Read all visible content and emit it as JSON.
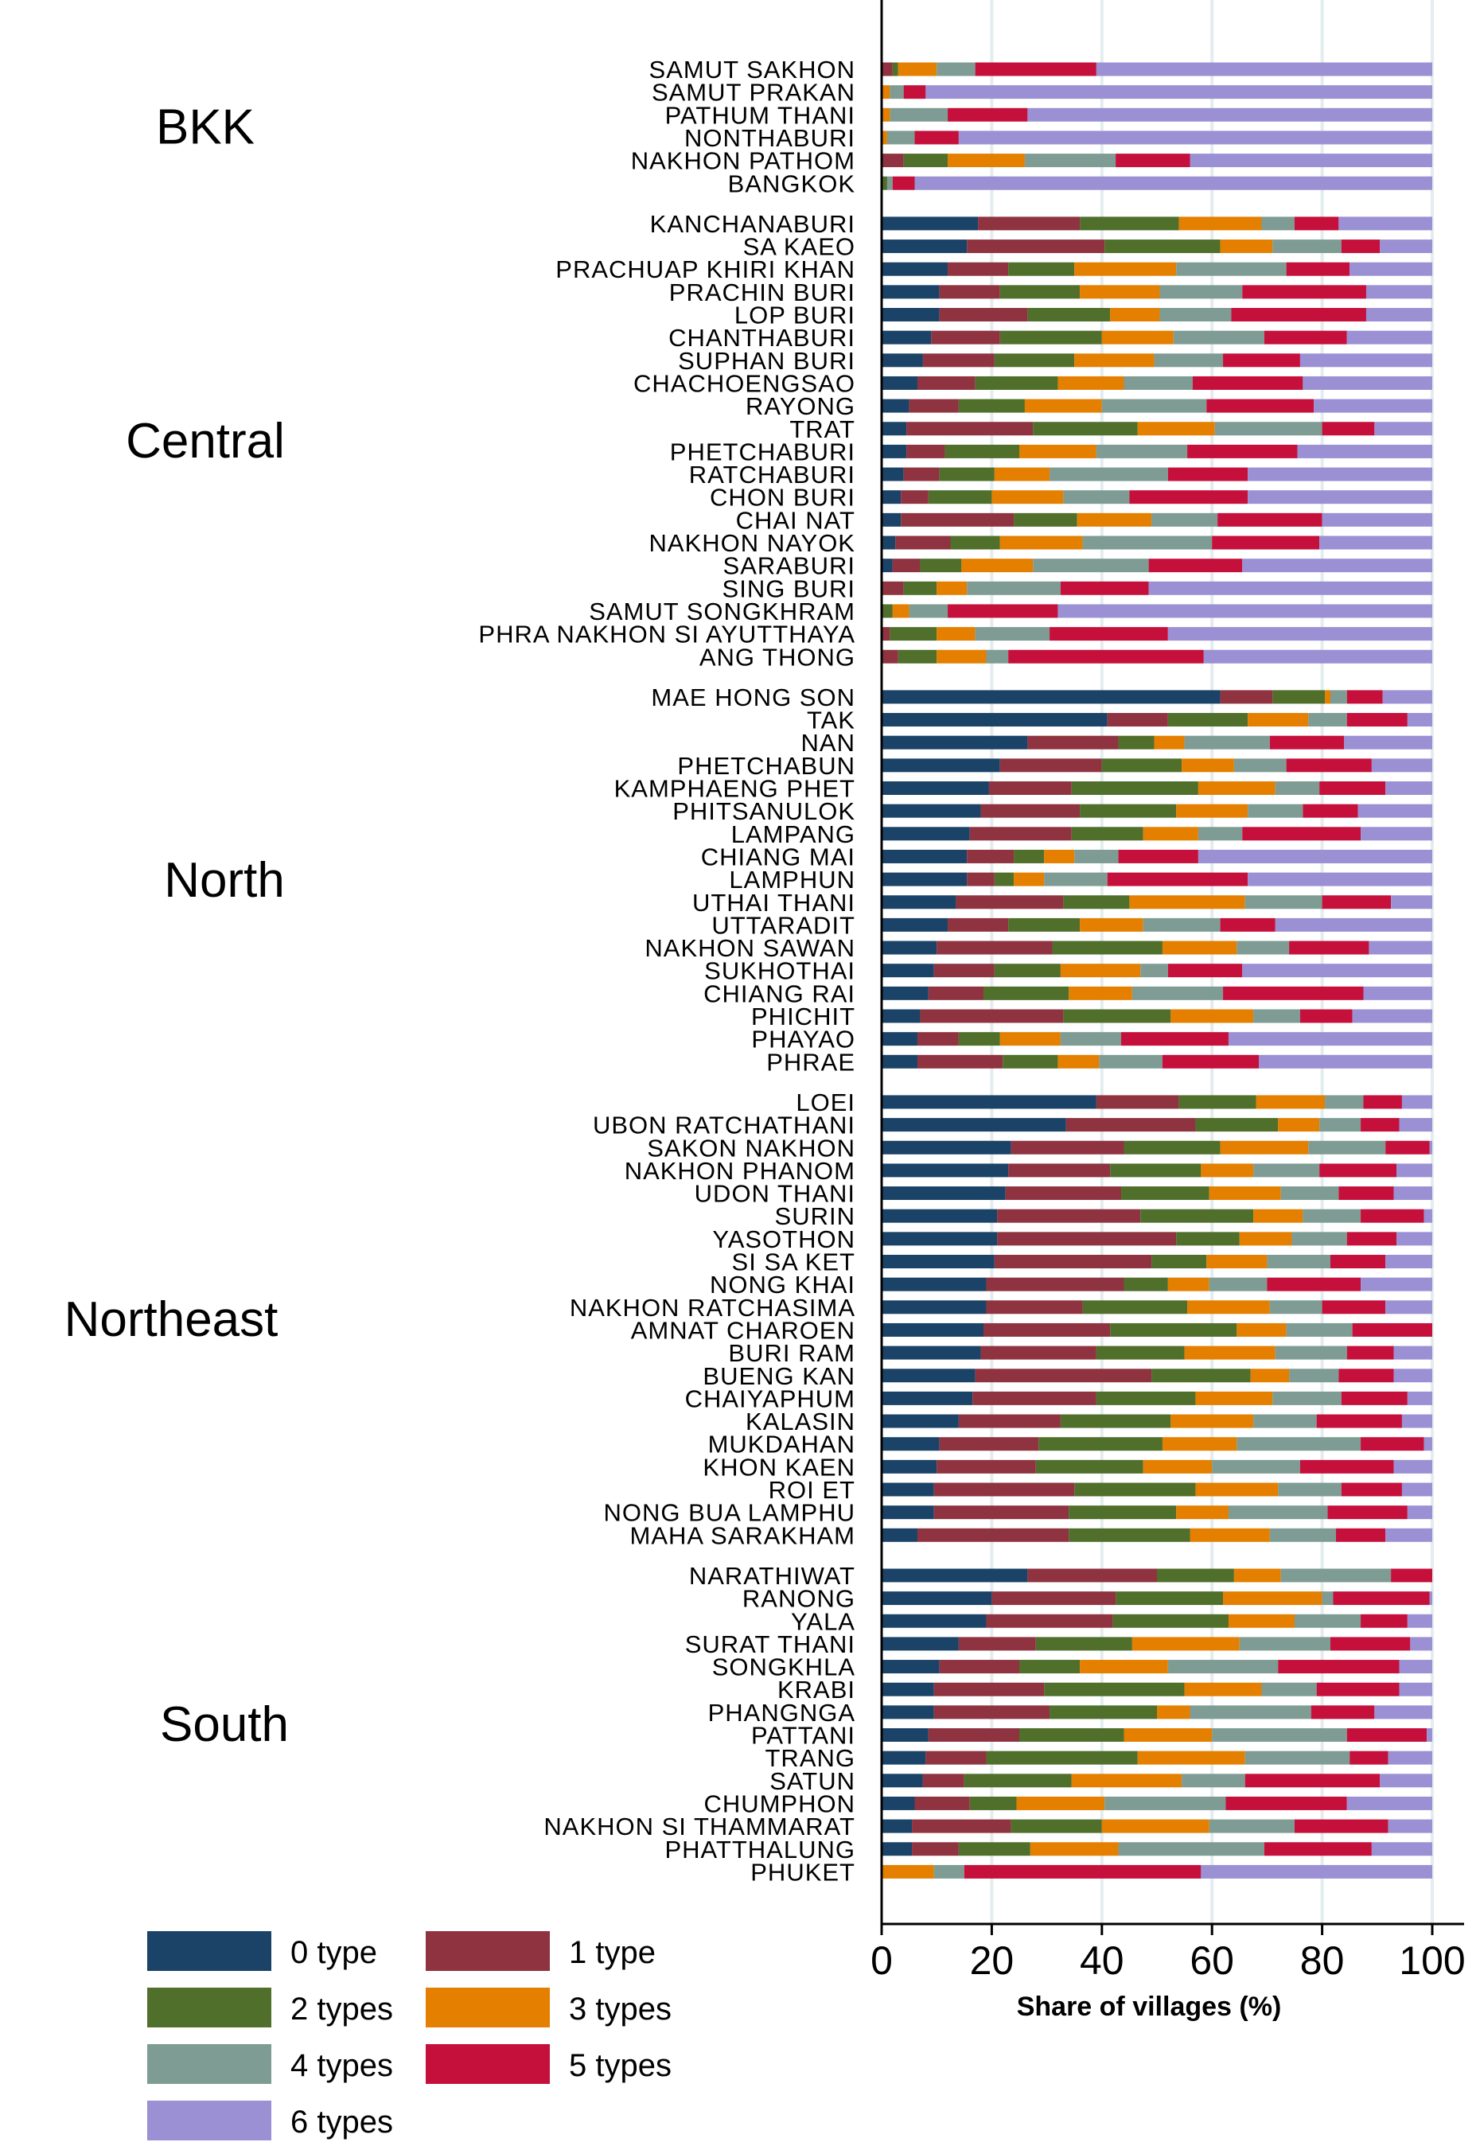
{
  "chart_data": {
    "type": "bar",
    "orientation": "horizontal",
    "stacked": true,
    "xlabel": "Share of villages (%)",
    "xlim": [
      0,
      100
    ],
    "xticks": [
      0,
      20,
      40,
      60,
      80,
      100
    ],
    "grid": "vertical",
    "legend_position": "bottom-left",
    "series": [
      {
        "name": "0 type",
        "color": "#1b4368"
      },
      {
        "name": "1 type",
        "color": "#8f3340"
      },
      {
        "name": "2 types",
        "color": "#4f6f2b"
      },
      {
        "name": "3 types",
        "color": "#e47f00"
      },
      {
        "name": "4 types",
        "color": "#7e9c94"
      },
      {
        "name": "5 types",
        "color": "#c6103c"
      },
      {
        "name": "6 types",
        "color": "#9b90d4"
      }
    ],
    "groups": [
      {
        "name": "BKK",
        "rows": [
          {
            "province": "SAMUT SAKHON",
            "values": [
              0,
              2,
              1,
              7,
              7,
              22,
              61
            ]
          },
          {
            "province": "SAMUT PRAKAN",
            "values": [
              0,
              0,
              0,
              1.5,
              2.5,
              4,
              92
            ]
          },
          {
            "province": "PATHUM THANI",
            "values": [
              0,
              0,
              0,
              1.5,
              10.5,
              14.5,
              73.5
            ]
          },
          {
            "province": "NONTHABURI",
            "values": [
              0,
              0,
              0,
              1,
              5,
              8,
              86
            ]
          },
          {
            "province": "NAKHON PATHOM",
            "values": [
              0,
              4,
              8,
              14,
              16.5,
              13.5,
              44
            ]
          },
          {
            "province": "BANGKOK",
            "values": [
              0,
              0,
              1,
              0,
              1,
              4,
              94
            ]
          }
        ]
      },
      {
        "name": "Central",
        "rows": [
          {
            "province": "KANCHANABURI",
            "values": [
              17.5,
              18.5,
              18,
              15,
              6,
              8,
              17
            ]
          },
          {
            "province": "SA KAEO",
            "values": [
              15.5,
              25,
              21,
              9.5,
              12.5,
              7,
              9.5
            ]
          },
          {
            "province": "PRACHUAP KHIRI KHAN",
            "values": [
              12,
              11,
              12,
              18.5,
              20,
              11.5,
              15
            ]
          },
          {
            "province": "PRACHIN BURI",
            "values": [
              10.5,
              11,
              14.5,
              14.5,
              15,
              22.5,
              12
            ]
          },
          {
            "province": "LOP BURI",
            "values": [
              10.5,
              16,
              15,
              9,
              13,
              24.5,
              12
            ]
          },
          {
            "province": "CHANTHABURI",
            "values": [
              9,
              12.5,
              18.5,
              13,
              16.5,
              15,
              15.5
            ]
          },
          {
            "province": "SUPHAN BURI",
            "values": [
              7.5,
              13,
              14.5,
              14.5,
              12.5,
              14,
              24
            ]
          },
          {
            "province": "CHACHOENGSAO",
            "values": [
              6.5,
              10.5,
              15,
              12,
              12.5,
              20,
              23.5
            ]
          },
          {
            "province": "RAYONG",
            "values": [
              5,
              9,
              12,
              14,
              19,
              19.5,
              21.5
            ]
          },
          {
            "province": "TRAT",
            "values": [
              4.5,
              23,
              19,
              14,
              19.5,
              9.5,
              10.5
            ]
          },
          {
            "province": "PHETCHABURI",
            "values": [
              4.5,
              7,
              13.5,
              14,
              16.5,
              20,
              24.5
            ]
          },
          {
            "province": "RATCHABURI",
            "values": [
              4,
              6.5,
              10,
              10,
              21.5,
              14.5,
              33.5
            ]
          },
          {
            "province": "CHON BURI",
            "values": [
              3.5,
              5,
              11.5,
              13,
              12,
              21.5,
              33.5
            ]
          },
          {
            "province": "CHAI NAT",
            "values": [
              3.5,
              20.5,
              11.5,
              13.5,
              12,
              19,
              20
            ]
          },
          {
            "province": "NAKHON NAYOK",
            "values": [
              2.5,
              10,
              9,
              15,
              23.5,
              19.5,
              20.5
            ]
          },
          {
            "province": "SARABURI",
            "values": [
              2,
              5,
              7.5,
              13,
              21,
              17,
              34.5
            ]
          },
          {
            "province": "SING BURI",
            "values": [
              0,
              4,
              6,
              5.5,
              17,
              16,
              51.5
            ]
          },
          {
            "province": "SAMUT SONGKHRAM",
            "values": [
              0,
              0,
              2,
              3,
              7,
              20,
              68
            ]
          },
          {
            "province": "PHRA NAKHON SI AYUTTHAYA",
            "values": [
              0,
              1.5,
              8.5,
              7,
              13.5,
              21.5,
              48
            ]
          },
          {
            "province": "ANG THONG",
            "values": [
              0,
              3,
              7,
              9,
              4,
              35.5,
              41.5
            ]
          }
        ]
      },
      {
        "name": "North",
        "rows": [
          {
            "province": "MAE HONG SON",
            "values": [
              61.5,
              9.5,
              9.5,
              1,
              3,
              6.5,
              9
            ]
          },
          {
            "province": "TAK",
            "values": [
              41,
              11,
              14.5,
              11,
              7,
              11,
              4.5
            ]
          },
          {
            "province": "NAN",
            "values": [
              26.5,
              16.5,
              6.5,
              5.5,
              15.5,
              13.5,
              16
            ]
          },
          {
            "province": "PHETCHABUN",
            "values": [
              21.5,
              18.5,
              14.5,
              9.5,
              9.5,
              15.5,
              11
            ]
          },
          {
            "province": "KAMPHAENG PHET",
            "values": [
              19.5,
              15,
              23,
              14,
              8,
              12,
              8.5
            ]
          },
          {
            "province": "PHITSANULOK",
            "values": [
              18,
              18,
              17.5,
              13,
              10,
              10,
              13.5
            ]
          },
          {
            "province": "LAMPANG",
            "values": [
              16,
              18.5,
              13,
              10,
              8,
              21.5,
              13
            ]
          },
          {
            "province": "CHIANG MAI",
            "values": [
              15.5,
              8.5,
              5.5,
              5.5,
              8,
              14.5,
              42.5
            ]
          },
          {
            "province": "LAMPHUN",
            "values": [
              15.5,
              5,
              3.5,
              5.5,
              11.5,
              25.5,
              33.5
            ]
          },
          {
            "province": "UTHAI THANI",
            "values": [
              13.5,
              19.5,
              12,
              21,
              14,
              12.5,
              7.5
            ]
          },
          {
            "province": "UTTARADIT",
            "values": [
              12,
              11,
              13,
              11.5,
              14,
              10,
              28.5
            ]
          },
          {
            "province": "NAKHON SAWAN",
            "values": [
              10,
              21,
              20,
              13.5,
              9.5,
              14.5,
              11.5
            ]
          },
          {
            "province": "SUKHOTHAI",
            "values": [
              9.5,
              11,
              12,
              14.5,
              5,
              13.5,
              34.5
            ]
          },
          {
            "province": "CHIANG RAI",
            "values": [
              8.5,
              10,
              15.5,
              11.5,
              16.5,
              25.5,
              12.5
            ]
          },
          {
            "province": "PHICHIT",
            "values": [
              7,
              26,
              19.5,
              15,
              8.5,
              9.5,
              14.5
            ]
          },
          {
            "province": "PHAYAO",
            "values": [
              6.5,
              7.5,
              7.5,
              11,
              11,
              19.5,
              37
            ]
          },
          {
            "province": "PHRAE",
            "values": [
              6.5,
              15.5,
              10,
              7.5,
              11.5,
              17.5,
              31.5
            ]
          }
        ]
      },
      {
        "name": "Northeast",
        "rows": [
          {
            "province": "LOEI",
            "values": [
              39,
              15,
              14,
              12.5,
              7,
              7,
              5.5
            ]
          },
          {
            "province": "UBON RATCHATHANI",
            "values": [
              33.5,
              23.5,
              15,
              7.5,
              7.5,
              7,
              6
            ]
          },
          {
            "province": "SAKON NAKHON",
            "values": [
              23.5,
              20.5,
              17.5,
              16,
              14,
              8,
              0.5
            ]
          },
          {
            "province": "NAKHON PHANOM",
            "values": [
              23,
              18.5,
              16.5,
              9.5,
              12,
              14,
              6.5
            ]
          },
          {
            "province": "UDON THANI",
            "values": [
              22.5,
              21,
              16,
              13,
              10.5,
              10,
              7
            ]
          },
          {
            "province": "SURIN",
            "values": [
              21,
              26,
              20.5,
              9,
              10.5,
              11.5,
              1.5
            ]
          },
          {
            "province": "YASOTHON",
            "values": [
              21,
              32.5,
              11.5,
              9.5,
              10,
              9,
              6.5
            ]
          },
          {
            "province": "SI SA KET",
            "values": [
              20.5,
              28.5,
              10,
              11,
              11.5,
              10,
              8.5
            ]
          },
          {
            "province": "NONG KHAI",
            "values": [
              19,
              25,
              8,
              7.5,
              10.5,
              17,
              13
            ]
          },
          {
            "province": "NAKHON RATCHASIMA",
            "values": [
              19,
              17.5,
              19,
              15,
              9.5,
              11.5,
              8.5
            ]
          },
          {
            "province": "AMNAT CHAROEN",
            "values": [
              18.5,
              23,
              23,
              9,
              12,
              14.5,
              0
            ]
          },
          {
            "province": "BURI RAM",
            "values": [
              18,
              21,
              16,
              16.5,
              13,
              8.5,
              7
            ]
          },
          {
            "province": "BUENG KAN",
            "values": [
              17,
              32,
              18,
              7,
              9,
              10,
              7
            ]
          },
          {
            "province": "CHAIYAPHUM",
            "values": [
              16.5,
              22.5,
              18,
              14,
              12.5,
              12,
              4.5
            ]
          },
          {
            "province": "KALASIN",
            "values": [
              14,
              18.5,
              20,
              15,
              11.5,
              15.5,
              5.5
            ]
          },
          {
            "province": "MUKDAHAN",
            "values": [
              10.5,
              18,
              22.5,
              13.5,
              22.5,
              11.5,
              1.5
            ]
          },
          {
            "province": "KHON KAEN",
            "values": [
              10,
              18,
              19.5,
              12.5,
              16,
              17,
              7
            ]
          },
          {
            "province": "ROI ET",
            "values": [
              9.5,
              25.5,
              22,
              15,
              11.5,
              11,
              5.5
            ]
          },
          {
            "province": "NONG BUA LAMPHU",
            "values": [
              9.5,
              24.5,
              19.5,
              9.5,
              18,
              14.5,
              4.5
            ]
          },
          {
            "province": "MAHA SARAKHAM",
            "values": [
              6.5,
              27.5,
              22,
              14.5,
              12,
              9,
              8.5
            ]
          }
        ]
      },
      {
        "name": "South",
        "rows": [
          {
            "province": "NARATHIWAT",
            "values": [
              26.5,
              23.5,
              14,
              8.5,
              20,
              7.5,
              0
            ]
          },
          {
            "province": "RANONG",
            "values": [
              20,
              22.5,
              19.5,
              18,
              2,
              17.5,
              0.5
            ]
          },
          {
            "province": "YALA",
            "values": [
              19,
              23,
              21,
              12,
              12,
              8.5,
              4.5
            ]
          },
          {
            "province": "SURAT THANI",
            "values": [
              14,
              14,
              17.5,
              19.5,
              16.5,
              14.5,
              4
            ]
          },
          {
            "province": "SONGKHLA",
            "values": [
              10.5,
              14.5,
              11,
              16,
              20,
              22,
              6
            ]
          },
          {
            "province": "KRABI",
            "values": [
              9.5,
              20,
              25.5,
              14,
              10,
              15,
              6
            ]
          },
          {
            "province": "PHANGNGA",
            "values": [
              9.5,
              21,
              19.5,
              6,
              22,
              11.5,
              10.5
            ]
          },
          {
            "province": "PATTANI",
            "values": [
              8.5,
              16.5,
              19,
              16,
              24.5,
              14.5,
              1
            ]
          },
          {
            "province": "TRANG",
            "values": [
              8,
              11,
              27.5,
              19.5,
              19,
              7,
              8
            ]
          },
          {
            "province": "SATUN",
            "values": [
              7.5,
              7.5,
              19.5,
              20,
              11.5,
              24.5,
              9.5
            ]
          },
          {
            "province": "CHUMPHON",
            "values": [
              6,
              10,
              8.5,
              16,
              22,
              22,
              15.5
            ]
          },
          {
            "province": "NAKHON SI THAMMARAT",
            "values": [
              5.5,
              18,
              16.5,
              19.5,
              15.5,
              17,
              8
            ]
          },
          {
            "province": "PHATTHALUNG",
            "values": [
              5.5,
              8.5,
              13,
              16,
              26.5,
              19.5,
              11
            ]
          },
          {
            "province": "PHUKET",
            "values": [
              0,
              0,
              0,
              9.5,
              5.5,
              43,
              42
            ]
          }
        ]
      }
    ]
  }
}
